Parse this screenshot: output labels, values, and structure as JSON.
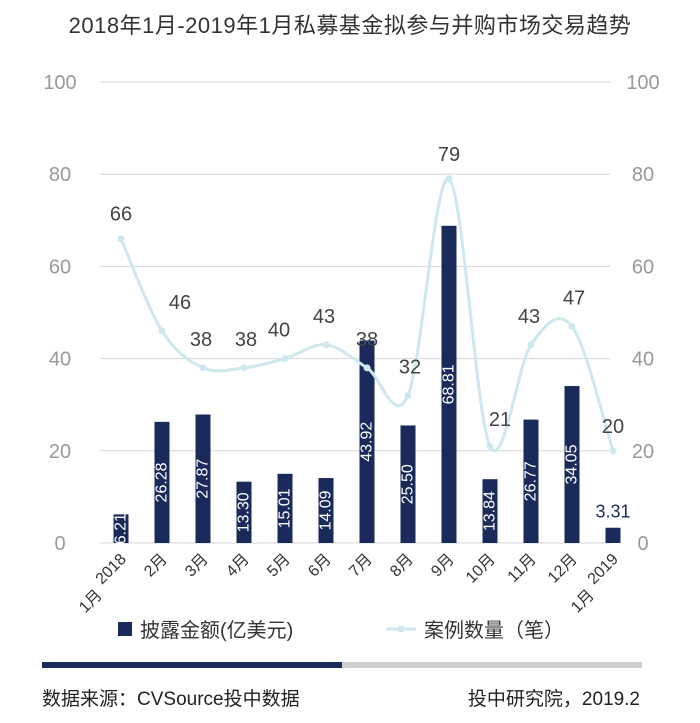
{
  "title": "2018年1月-2019年1月私募基金拟参与并购市场交易趋势",
  "source": "数据来源：CVSource投中数据",
  "credit": "投中研究院，2019.2",
  "colors": {
    "bar": "#1a2a5a",
    "line": "#cde8ee",
    "grid": "#d6d6d6",
    "axis": "#999999"
  },
  "chart_data": {
    "type": "bar",
    "categories": [
      "2018",
      "2月",
      "3月",
      "4月",
      "5月",
      "6月",
      "7月",
      "8月",
      "9月",
      "10月",
      "11月",
      "12月",
      "2019"
    ],
    "sub_labels": [
      "1月",
      "",
      "",
      "",
      "",
      "",
      "",
      "",
      "",
      "",
      "",
      "",
      "1月"
    ],
    "series": [
      {
        "name": "披露金额(亿美元)",
        "type": "bar",
        "values": [
          6.21,
          26.28,
          27.87,
          13.3,
          15.01,
          14.09,
          43.92,
          25.5,
          68.81,
          13.84,
          26.77,
          34.05,
          3.31
        ],
        "labels": [
          "6.21",
          "26.28",
          "27.87",
          "13.30",
          "15.01",
          "14.09",
          "43.92",
          "25.50",
          "68.81",
          "13.84",
          "26.77",
          "34.05",
          "3.31"
        ]
      },
      {
        "name": "案例数量（笔）",
        "type": "line",
        "values": [
          66,
          46,
          38,
          38,
          40,
          43,
          38,
          32,
          79,
          21,
          43,
          47,
          20
        ],
        "labels": [
          "66",
          "46",
          "38",
          "38",
          "40",
          "43",
          "38",
          "32",
          "79",
          "21",
          "43",
          "47",
          "20"
        ]
      }
    ],
    "ylim": [
      0,
      100
    ],
    "y_ticks": [
      "0",
      "20",
      "40",
      "60",
      "80",
      "100"
    ],
    "y2lim": [
      0,
      100
    ],
    "y2_ticks": [
      "0",
      "20",
      "40",
      "60",
      "80",
      "100"
    ],
    "grid": true,
    "legend": "bottom"
  }
}
